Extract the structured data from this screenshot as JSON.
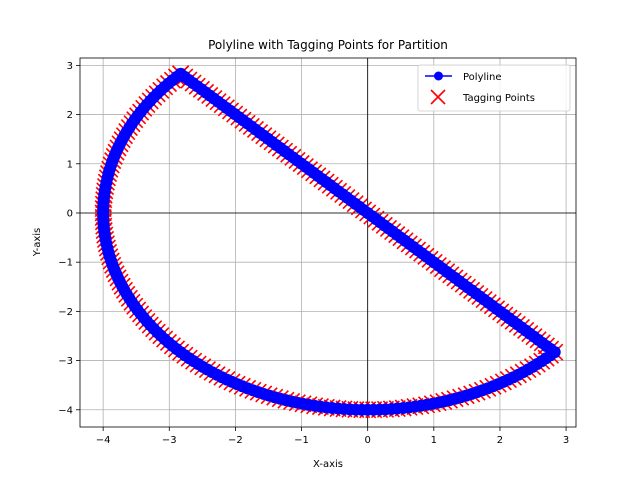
{
  "chart_data": {
    "type": "line",
    "title": "Polyline with Tagging Points for Partition",
    "xlabel": "X-axis",
    "ylabel": "Y-axis",
    "xlim": [
      -4.35,
      3.15
    ],
    "ylim": [
      -4.35,
      3.15
    ],
    "xticks": [
      -4,
      -3,
      -2,
      -1,
      0,
      1,
      2,
      3
    ],
    "yticks": [
      -4,
      -3,
      -2,
      -1,
      0,
      1,
      2,
      3
    ],
    "xtick_labels": [
      "−4",
      "−3",
      "−2",
      "−1",
      "0",
      "1",
      "2",
      "3"
    ],
    "ytick_labels": [
      "−4",
      "−3",
      "−2",
      "−1",
      "0",
      "1",
      "2",
      "3"
    ],
    "grid": true,
    "reference_lines": {
      "x": 0,
      "y": 0
    },
    "legend_position": "top-right",
    "arc": {
      "radius": 4,
      "start_angle_deg": 135,
      "end_angle_deg": 315,
      "chord": "straight"
    },
    "series": [
      {
        "name": "Polyline",
        "kind": "line-marker",
        "color": "#0000ff",
        "marker": "circle"
      },
      {
        "name": "Tagging Points",
        "kind": "scatter",
        "color": "#ff0000",
        "marker": "x"
      }
    ]
  }
}
